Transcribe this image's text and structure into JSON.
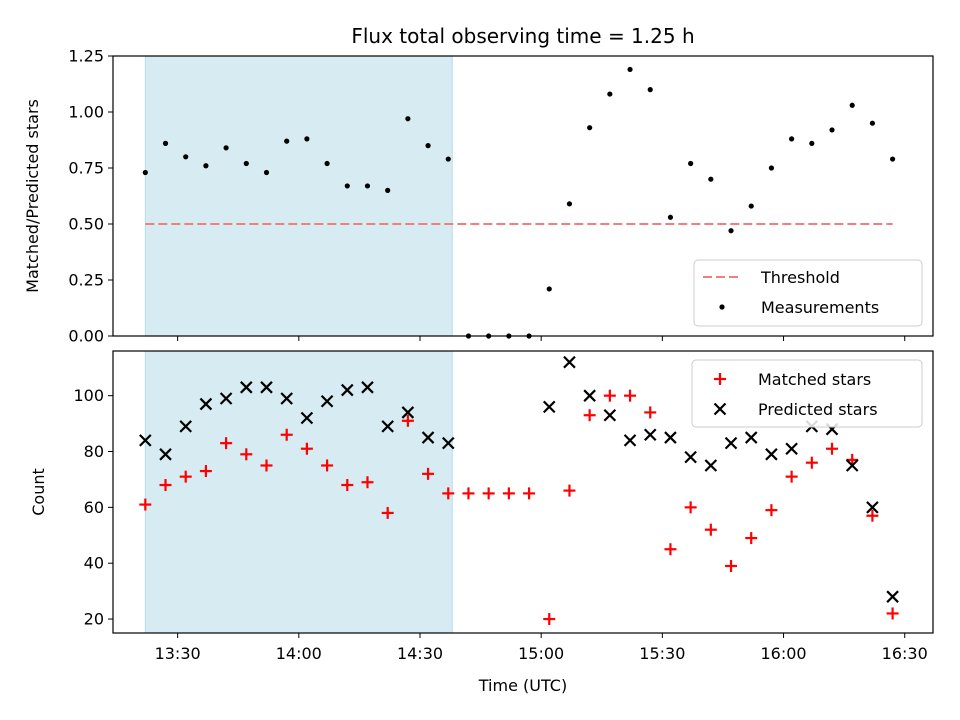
{
  "colors": {
    "shade": "#add8e6",
    "threshold": "#f08080",
    "measurement": "#000000",
    "matched": "#ff0000",
    "predicted": "#000000"
  },
  "chart_data": [
    {
      "type": "scatter",
      "title": "Flux total observing time = 1.25 h",
      "xlabel": "",
      "ylabel": "Matched/Predicted stars",
      "xlim": [
        "13:14",
        "16:37"
      ],
      "ylim": [
        0,
        1.25
      ],
      "x_ticks": [
        "13:30",
        "14:00",
        "14:30",
        "15:00",
        "15:30",
        "16:00",
        "16:30"
      ],
      "y_ticks": [
        "0.00",
        "0.25",
        "0.50",
        "0.75",
        "1.00",
        "1.25"
      ],
      "shaded_span": [
        "13:22",
        "14:38"
      ],
      "threshold": {
        "name": "Threshold",
        "value": 0.5,
        "x_range": [
          "13:22",
          "16:27"
        ]
      },
      "legend_position": "lower-right",
      "series": [
        {
          "name": "Measurements",
          "marker": "dot",
          "x": [
            "13:22",
            "13:27",
            "13:32",
            "13:37",
            "13:42",
            "13:47",
            "13:52",
            "13:57",
            "14:02",
            "14:07",
            "14:12",
            "14:17",
            "14:22",
            "14:27",
            "14:32",
            "14:37",
            "14:42",
            "14:47",
            "14:52",
            "14:57",
            "15:02",
            "15:07",
            "15:12",
            "15:17",
            "15:22",
            "15:27",
            "15:32",
            "15:37",
            "15:42",
            "15:47",
            "15:52",
            "15:57",
            "16:02",
            "16:07",
            "16:12",
            "16:17",
            "16:22",
            "16:27"
          ],
          "values": [
            0.73,
            0.86,
            0.8,
            0.76,
            0.84,
            0.77,
            0.73,
            0.87,
            0.88,
            0.77,
            0.67,
            0.67,
            0.65,
            0.97,
            0.85,
            0.79,
            0.0,
            0.0,
            0.0,
            0.0,
            0.21,
            0.59,
            0.93,
            1.08,
            1.19,
            1.1,
            0.53,
            0.77,
            0.7,
            0.47,
            0.58,
            0.75,
            0.88,
            0.86,
            0.92,
            1.03,
            0.95,
            0.79
          ]
        }
      ]
    },
    {
      "type": "scatter",
      "title": "",
      "xlabel": "Time (UTC)",
      "ylabel": "Count",
      "xlim": [
        "13:14",
        "16:37"
      ],
      "ylim": [
        15,
        116
      ],
      "x_ticks": [
        "13:30",
        "14:00",
        "14:30",
        "15:00",
        "15:30",
        "16:00",
        "16:30"
      ],
      "y_ticks": [
        "20",
        "40",
        "60",
        "80",
        "100"
      ],
      "shaded_span": [
        "13:22",
        "14:38"
      ],
      "legend_position": "upper-right",
      "series": [
        {
          "name": "Matched stars",
          "marker": "plus",
          "x": [
            "13:22",
            "13:27",
            "13:32",
            "13:37",
            "13:42",
            "13:47",
            "13:52",
            "13:57",
            "14:02",
            "14:07",
            "14:12",
            "14:17",
            "14:22",
            "14:27",
            "14:32",
            "14:37",
            "14:42",
            "14:47",
            "14:52",
            "14:57",
            "15:02",
            "15:07",
            "15:12",
            "15:17",
            "15:22",
            "15:27",
            "15:32",
            "15:37",
            "15:42",
            "15:47",
            "15:52",
            "15:57",
            "16:02",
            "16:07",
            "16:12",
            "16:17",
            "16:22",
            "16:27"
          ],
          "values": [
            61,
            68,
            71,
            73,
            83,
            79,
            75,
            86,
            81,
            75,
            68,
            69,
            58,
            91,
            72,
            65,
            65,
            65,
            65,
            65,
            20,
            66,
            93,
            100,
            100,
            94,
            45,
            60,
            52,
            39,
            49,
            59,
            71,
            76,
            81,
            77,
            57,
            22
          ]
        },
        {
          "name": "Predicted stars",
          "marker": "x",
          "x": [
            "13:22",
            "13:27",
            "13:32",
            "13:37",
            "13:42",
            "13:47",
            "13:52",
            "13:57",
            "14:02",
            "14:07",
            "14:12",
            "14:17",
            "14:22",
            "14:27",
            "14:32",
            "14:37",
            "15:02",
            "15:07",
            "15:12",
            "15:17",
            "15:22",
            "15:27",
            "15:32",
            "15:37",
            "15:42",
            "15:47",
            "15:52",
            "15:57",
            "16:02",
            "16:07",
            "16:12",
            "16:17",
            "16:22",
            "16:27"
          ],
          "values": [
            84,
            79,
            89,
            97,
            99,
            103,
            103,
            99,
            92,
            98,
            102,
            103,
            89,
            94,
            85,
            83,
            96,
            112,
            100,
            93,
            84,
            86,
            85,
            78,
            75,
            83,
            85,
            79,
            81,
            89,
            88,
            75,
            60,
            28
          ]
        }
      ]
    }
  ]
}
